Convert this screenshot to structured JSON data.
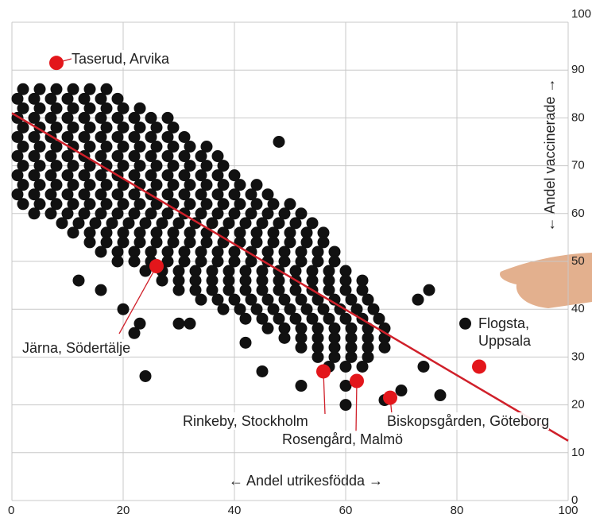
{
  "chart_data": {
    "type": "scatter",
    "x_label": "← Andel utrikesfödda →",
    "y_label": "← Andel vaccinerade →",
    "xlim": [
      0,
      100
    ],
    "ylim": [
      0,
      100
    ],
    "xticks": [
      0,
      20,
      40,
      60,
      80,
      100
    ],
    "yticks": [
      0,
      10,
      20,
      30,
      40,
      50,
      60,
      70,
      80,
      90,
      100
    ],
    "grid": true,
    "color": "#111111",
    "highlight_color": "#e3161b",
    "trend_color": "#d0202a",
    "trend": {
      "x": [
        0,
        100
      ],
      "y": [
        81,
        12.5
      ]
    },
    "highlights": [
      {
        "label": "Taserud, Arvika",
        "x": 8,
        "y": 91.5
      },
      {
        "label": "Järna, Södertälje",
        "x": 26,
        "y": 49
      },
      {
        "label": "Rinkeby, Stockholm",
        "x": 56,
        "y": 27
      },
      {
        "label": "Rosengård, Malmö",
        "x": 62,
        "y": 25
      },
      {
        "label": "Biskopsgården, Göteborg",
        "x": 68,
        "y": 21.5
      },
      {
        "label": "Flogsta, Uppsala",
        "x": 84,
        "y": 28
      }
    ],
    "points": [
      [
        2,
        86
      ],
      [
        5,
        86
      ],
      [
        8,
        86
      ],
      [
        11,
        86
      ],
      [
        14,
        86
      ],
      [
        17,
        86
      ],
      [
        1,
        84
      ],
      [
        4,
        84
      ],
      [
        7,
        84
      ],
      [
        10,
        84
      ],
      [
        13,
        84
      ],
      [
        16,
        84
      ],
      [
        19,
        84
      ],
      [
        2,
        82
      ],
      [
        5,
        82
      ],
      [
        8,
        82
      ],
      [
        11,
        82
      ],
      [
        14,
        82
      ],
      [
        17,
        82
      ],
      [
        20,
        82
      ],
      [
        23,
        82
      ],
      [
        1,
        80
      ],
      [
        4,
        80
      ],
      [
        7,
        80
      ],
      [
        10,
        80
      ],
      [
        13,
        80
      ],
      [
        16,
        80
      ],
      [
        19,
        80
      ],
      [
        22,
        80
      ],
      [
        25,
        80
      ],
      [
        28,
        80
      ],
      [
        2,
        78
      ],
      [
        5,
        78
      ],
      [
        8,
        78
      ],
      [
        11,
        78
      ],
      [
        14,
        78
      ],
      [
        17,
        78
      ],
      [
        20,
        78
      ],
      [
        23,
        78
      ],
      [
        26,
        78
      ],
      [
        29,
        78
      ],
      [
        1,
        76
      ],
      [
        4,
        76
      ],
      [
        7,
        76
      ],
      [
        10,
        76
      ],
      [
        13,
        76
      ],
      [
        16,
        76
      ],
      [
        19,
        76
      ],
      [
        22,
        76
      ],
      [
        25,
        76
      ],
      [
        28,
        76
      ],
      [
        31,
        76
      ],
      [
        2,
        74
      ],
      [
        5,
        74
      ],
      [
        8,
        74
      ],
      [
        11,
        74
      ],
      [
        14,
        74
      ],
      [
        17,
        74
      ],
      [
        20,
        74
      ],
      [
        23,
        74
      ],
      [
        26,
        74
      ],
      [
        29,
        74
      ],
      [
        32,
        74
      ],
      [
        35,
        74
      ],
      [
        1,
        72
      ],
      [
        4,
        72
      ],
      [
        7,
        72
      ],
      [
        10,
        72
      ],
      [
        13,
        72
      ],
      [
        16,
        72
      ],
      [
        19,
        72
      ],
      [
        22,
        72
      ],
      [
        25,
        72
      ],
      [
        28,
        72
      ],
      [
        31,
        72
      ],
      [
        34,
        72
      ],
      [
        37,
        72
      ],
      [
        2,
        70
      ],
      [
        5,
        70
      ],
      [
        8,
        70
      ],
      [
        11,
        70
      ],
      [
        14,
        70
      ],
      [
        17,
        70
      ],
      [
        20,
        70
      ],
      [
        23,
        70
      ],
      [
        26,
        70
      ],
      [
        29,
        70
      ],
      [
        32,
        70
      ],
      [
        35,
        70
      ],
      [
        38,
        70
      ],
      [
        1,
        68
      ],
      [
        4,
        68
      ],
      [
        7,
        68
      ],
      [
        10,
        68
      ],
      [
        13,
        68
      ],
      [
        16,
        68
      ],
      [
        19,
        68
      ],
      [
        22,
        68
      ],
      [
        25,
        68
      ],
      [
        28,
        68
      ],
      [
        31,
        68
      ],
      [
        34,
        68
      ],
      [
        37,
        68
      ],
      [
        40,
        68
      ],
      [
        2,
        66
      ],
      [
        5,
        66
      ],
      [
        8,
        66
      ],
      [
        11,
        66
      ],
      [
        14,
        66
      ],
      [
        17,
        66
      ],
      [
        20,
        66
      ],
      [
        23,
        66
      ],
      [
        26,
        66
      ],
      [
        29,
        66
      ],
      [
        32,
        66
      ],
      [
        35,
        66
      ],
      [
        38,
        66
      ],
      [
        41,
        66
      ],
      [
        44,
        66
      ],
      [
        1,
        64
      ],
      [
        4,
        64
      ],
      [
        7,
        64
      ],
      [
        10,
        64
      ],
      [
        13,
        64
      ],
      [
        16,
        64
      ],
      [
        19,
        64
      ],
      [
        22,
        64
      ],
      [
        25,
        64
      ],
      [
        28,
        64
      ],
      [
        31,
        64
      ],
      [
        34,
        64
      ],
      [
        37,
        64
      ],
      [
        40,
        64
      ],
      [
        43,
        64
      ],
      [
        46,
        64
      ],
      [
        2,
        62
      ],
      [
        5,
        62
      ],
      [
        8,
        62
      ],
      [
        11,
        62
      ],
      [
        14,
        62
      ],
      [
        17,
        62
      ],
      [
        20,
        62
      ],
      [
        23,
        62
      ],
      [
        26,
        62
      ],
      [
        29,
        62
      ],
      [
        32,
        62
      ],
      [
        35,
        62
      ],
      [
        38,
        62
      ],
      [
        41,
        62
      ],
      [
        44,
        62
      ],
      [
        47,
        62
      ],
      [
        50,
        62
      ],
      [
        4,
        60
      ],
      [
        7,
        60
      ],
      [
        10,
        60
      ],
      [
        13,
        60
      ],
      [
        16,
        60
      ],
      [
        19,
        60
      ],
      [
        22,
        60
      ],
      [
        25,
        60
      ],
      [
        28,
        60
      ],
      [
        31,
        60
      ],
      [
        34,
        60
      ],
      [
        37,
        60
      ],
      [
        40,
        60
      ],
      [
        43,
        60
      ],
      [
        46,
        60
      ],
      [
        49,
        60
      ],
      [
        52,
        60
      ],
      [
        9,
        58
      ],
      [
        12,
        58
      ],
      [
        15,
        58
      ],
      [
        18,
        58
      ],
      [
        21,
        58
      ],
      [
        24,
        58
      ],
      [
        27,
        58
      ],
      [
        30,
        58
      ],
      [
        33,
        58
      ],
      [
        36,
        58
      ],
      [
        39,
        58
      ],
      [
        42,
        58
      ],
      [
        45,
        58
      ],
      [
        48,
        58
      ],
      [
        51,
        58
      ],
      [
        54,
        58
      ],
      [
        11,
        56
      ],
      [
        14,
        56
      ],
      [
        17,
        56
      ],
      [
        20,
        56
      ],
      [
        23,
        56
      ],
      [
        26,
        56
      ],
      [
        29,
        56
      ],
      [
        32,
        56
      ],
      [
        35,
        56
      ],
      [
        38,
        56
      ],
      [
        41,
        56
      ],
      [
        44,
        56
      ],
      [
        47,
        56
      ],
      [
        50,
        56
      ],
      [
        53,
        56
      ],
      [
        56,
        56
      ],
      [
        14,
        54
      ],
      [
        17,
        54
      ],
      [
        20,
        54
      ],
      [
        23,
        54
      ],
      [
        26,
        54
      ],
      [
        29,
        54
      ],
      [
        32,
        54
      ],
      [
        35,
        54
      ],
      [
        38,
        54
      ],
      [
        41,
        54
      ],
      [
        44,
        54
      ],
      [
        47,
        54
      ],
      [
        50,
        54
      ],
      [
        53,
        54
      ],
      [
        56,
        54
      ],
      [
        16,
        52
      ],
      [
        19,
        52
      ],
      [
        22,
        52
      ],
      [
        25,
        52
      ],
      [
        28,
        52
      ],
      [
        31,
        52
      ],
      [
        34,
        52
      ],
      [
        37,
        52
      ],
      [
        40,
        52
      ],
      [
        43,
        52
      ],
      [
        46,
        52
      ],
      [
        49,
        52
      ],
      [
        52,
        52
      ],
      [
        55,
        52
      ],
      [
        58,
        52
      ],
      [
        19,
        50
      ],
      [
        22,
        50
      ],
      [
        25,
        50
      ],
      [
        28,
        50
      ],
      [
        31,
        50
      ],
      [
        34,
        50
      ],
      [
        37,
        50
      ],
      [
        40,
        50
      ],
      [
        43,
        50
      ],
      [
        46,
        50
      ],
      [
        49,
        50
      ],
      [
        52,
        50
      ],
      [
        55,
        50
      ],
      [
        58,
        50
      ],
      [
        24,
        48
      ],
      [
        27,
        48
      ],
      [
        30,
        48
      ],
      [
        33,
        48
      ],
      [
        36,
        48
      ],
      [
        39,
        48
      ],
      [
        42,
        48
      ],
      [
        45,
        48
      ],
      [
        48,
        48
      ],
      [
        51,
        48
      ],
      [
        54,
        48
      ],
      [
        57,
        48
      ],
      [
        60,
        48
      ],
      [
        27,
        46
      ],
      [
        30,
        46
      ],
      [
        33,
        46
      ],
      [
        36,
        46
      ],
      [
        39,
        46
      ],
      [
        42,
        46
      ],
      [
        45,
        46
      ],
      [
        48,
        46
      ],
      [
        51,
        46
      ],
      [
        54,
        46
      ],
      [
        57,
        46
      ],
      [
        60,
        46
      ],
      [
        63,
        46
      ],
      [
        30,
        44
      ],
      [
        33,
        44
      ],
      [
        36,
        44
      ],
      [
        39,
        44
      ],
      [
        42,
        44
      ],
      [
        45,
        44
      ],
      [
        48,
        44
      ],
      [
        51,
        44
      ],
      [
        54,
        44
      ],
      [
        57,
        44
      ],
      [
        60,
        44
      ],
      [
        63,
        44
      ],
      [
        34,
        42
      ],
      [
        37,
        42
      ],
      [
        40,
        42
      ],
      [
        43,
        42
      ],
      [
        46,
        42
      ],
      [
        49,
        42
      ],
      [
        52,
        42
      ],
      [
        55,
        42
      ],
      [
        58,
        42
      ],
      [
        61,
        42
      ],
      [
        64,
        42
      ],
      [
        38,
        40
      ],
      [
        41,
        40
      ],
      [
        44,
        40
      ],
      [
        47,
        40
      ],
      [
        50,
        40
      ],
      [
        53,
        40
      ],
      [
        56,
        40
      ],
      [
        59,
        40
      ],
      [
        62,
        40
      ],
      [
        65,
        40
      ],
      [
        42,
        38
      ],
      [
        45,
        38
      ],
      [
        48,
        38
      ],
      [
        51,
        38
      ],
      [
        54,
        38
      ],
      [
        57,
        38
      ],
      [
        60,
        38
      ],
      [
        63,
        38
      ],
      [
        66,
        38
      ],
      [
        46,
        36
      ],
      [
        49,
        36
      ],
      [
        52,
        36
      ],
      [
        55,
        36
      ],
      [
        58,
        36
      ],
      [
        61,
        36
      ],
      [
        64,
        36
      ],
      [
        67,
        36
      ],
      [
        49,
        34
      ],
      [
        52,
        34
      ],
      [
        55,
        34
      ],
      [
        58,
        34
      ],
      [
        61,
        34
      ],
      [
        64,
        34
      ],
      [
        67,
        34
      ],
      [
        52,
        32
      ],
      [
        55,
        32
      ],
      [
        58,
        32
      ],
      [
        61,
        32
      ],
      [
        64,
        32
      ],
      [
        67,
        32
      ],
      [
        55,
        30
      ],
      [
        58,
        30
      ],
      [
        61,
        30
      ],
      [
        64,
        30
      ],
      [
        57,
        28
      ],
      [
        60,
        28
      ],
      [
        63,
        28
      ],
      [
        24,
        26
      ],
      [
        22,
        35
      ],
      [
        23,
        37
      ],
      [
        48,
        75
      ],
      [
        32,
        37
      ],
      [
        30,
        37
      ],
      [
        75,
        44
      ],
      [
        73,
        42
      ],
      [
        77,
        22
      ],
      [
        74,
        28
      ],
      [
        81.5,
        37
      ],
      [
        67,
        21
      ],
      [
        70,
        23
      ],
      [
        60,
        24
      ],
      [
        52,
        24
      ],
      [
        45,
        27
      ],
      [
        42,
        33
      ],
      [
        60,
        20
      ],
      [
        20,
        40
      ],
      [
        12,
        46
      ],
      [
        16,
        44
      ]
    ]
  }
}
